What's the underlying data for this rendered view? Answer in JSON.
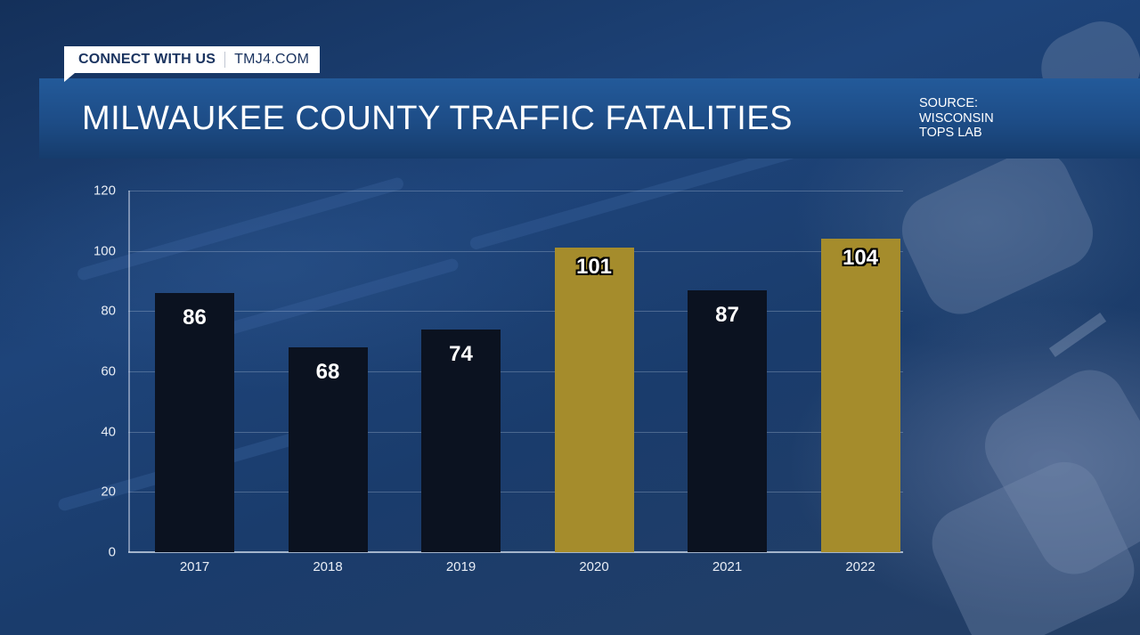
{
  "connect_tag": {
    "label": "CONNECT WITH US",
    "site": "TMJ4.COM"
  },
  "header": {
    "title": "MILWAUKEE COUNTY TRAFFIC FATALITIES",
    "source_lines": [
      "SOURCE:",
      "WISCONSIN",
      "TOPS LAB"
    ]
  },
  "colors": {
    "dark_bar": "#0b1220",
    "highlight_bar": "#a58c2c",
    "title_bar": "#1d4c86",
    "text": "#ffffff"
  },
  "chart_data": {
    "type": "bar",
    "title": "MILWAUKEE COUNTY TRAFFIC FATALITIES",
    "subtitle": "SOURCE: WISCONSIN TOPS LAB",
    "xlabel": "",
    "ylabel": "",
    "categories": [
      "2017",
      "2018",
      "2019",
      "2020",
      "2021",
      "2022"
    ],
    "values": [
      86,
      68,
      74,
      101,
      87,
      104
    ],
    "value_labels": [
      "86",
      "68",
      "74",
      "101",
      "87",
      "104"
    ],
    "highlighted": [
      false,
      false,
      false,
      true,
      false,
      true
    ],
    "ylim": [
      0,
      120
    ],
    "yticks": [
      0,
      20,
      40,
      60,
      80,
      100,
      120
    ],
    "ytick_labels": [
      "0",
      "20",
      "40",
      "60",
      "80",
      "100",
      "120"
    ],
    "grid": true,
    "legend": null
  }
}
